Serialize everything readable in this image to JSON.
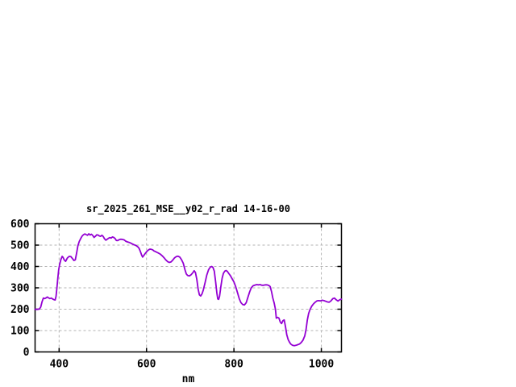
{
  "window": {
    "background": "#ffffff"
  },
  "chart_data": {
    "type": "line",
    "title": "sr_2025_261_MSE__y02_r_rad 14-16-00",
    "xlabel": "nm",
    "ylabel": "",
    "xlim": [
      345,
      1046
    ],
    "ylim": [
      0,
      600
    ],
    "xticks": [
      400,
      600,
      800,
      1000
    ],
    "yticks": [
      0,
      100,
      200,
      300,
      400,
      500,
      600
    ],
    "grid": true,
    "legend_position": "none",
    "colors": {
      "line": "#9400d3",
      "grid": "#b3b3b3",
      "axis": "#000000",
      "text": "#000000",
      "background": "#ffffff"
    },
    "series": [
      {
        "name": "sr_2025_261_MSE__y02_r_rad",
        "color": "#9400d3",
        "points": [
          [
            345,
            200
          ],
          [
            350,
            199
          ],
          [
            355,
            201
          ],
          [
            358,
            210
          ],
          [
            361,
            235
          ],
          [
            364,
            252
          ],
          [
            367,
            250
          ],
          [
            370,
            253
          ],
          [
            373,
            257
          ],
          [
            376,
            253
          ],
          [
            379,
            250
          ],
          [
            382,
            252
          ],
          [
            385,
            248
          ],
          [
            388,
            245
          ],
          [
            391,
            243
          ],
          [
            393,
            260
          ],
          [
            395,
            300
          ],
          [
            397,
            345
          ],
          [
            399,
            385
          ],
          [
            401,
            408
          ],
          [
            404,
            432
          ],
          [
            407,
            447
          ],
          [
            409,
            443
          ],
          [
            412,
            430
          ],
          [
            415,
            424
          ],
          [
            419,
            440
          ],
          [
            423,
            447
          ],
          [
            427,
            446
          ],
          [
            431,
            436
          ],
          [
            434,
            428
          ],
          [
            437,
            431
          ],
          [
            440,
            462
          ],
          [
            443,
            497
          ],
          [
            446,
            517
          ],
          [
            450,
            533
          ],
          [
            453,
            543
          ],
          [
            456,
            549
          ],
          [
            459,
            552
          ],
          [
            462,
            549
          ],
          [
            465,
            546
          ],
          [
            468,
            553
          ],
          [
            471,
            547
          ],
          [
            474,
            551
          ],
          [
            477,
            545
          ],
          [
            480,
            536
          ],
          [
            483,
            541
          ],
          [
            486,
            548
          ],
          [
            489,
            547
          ],
          [
            492,
            543
          ],
          [
            495,
            541
          ],
          [
            498,
            546
          ],
          [
            501,
            540
          ],
          [
            504,
            529
          ],
          [
            507,
            523
          ],
          [
            510,
            527
          ],
          [
            513,
            532
          ],
          [
            516,
            535
          ],
          [
            519,
            533
          ],
          [
            522,
            538
          ],
          [
            525,
            536
          ],
          [
            528,
            531
          ],
          [
            531,
            522
          ],
          [
            534,
            521
          ],
          [
            537,
            525
          ],
          [
            540,
            527
          ],
          [
            543,
            527
          ],
          [
            546,
            526
          ],
          [
            549,
            524
          ],
          [
            552,
            519
          ],
          [
            556,
            515
          ],
          [
            560,
            513
          ],
          [
            564,
            509
          ],
          [
            568,
            505
          ],
          [
            572,
            501
          ],
          [
            576,
            498
          ],
          [
            580,
            492
          ],
          [
            583,
            485
          ],
          [
            586,
            470
          ],
          [
            589,
            452
          ],
          [
            591,
            444
          ],
          [
            593,
            449
          ],
          [
            596,
            458
          ],
          [
            599,
            466
          ],
          [
            602,
            473
          ],
          [
            605,
            478
          ],
          [
            608,
            481
          ],
          [
            611,
            480
          ],
          [
            614,
            478
          ],
          [
            617,
            473
          ],
          [
            620,
            470
          ],
          [
            624,
            466
          ],
          [
            628,
            462
          ],
          [
            632,
            457
          ],
          [
            636,
            450
          ],
          [
            640,
            441
          ],
          [
            644,
            431
          ],
          [
            648,
            423
          ],
          [
            652,
            419
          ],
          [
            656,
            421
          ],
          [
            660,
            430
          ],
          [
            664,
            440
          ],
          [
            668,
            446
          ],
          [
            672,
            448
          ],
          [
            676,
            444
          ],
          [
            680,
            432
          ],
          [
            684,
            415
          ],
          [
            688,
            385
          ],
          [
            691,
            365
          ],
          [
            694,
            358
          ],
          [
            698,
            356
          ],
          [
            702,
            361
          ],
          [
            706,
            371
          ],
          [
            709,
            380
          ],
          [
            712,
            372
          ],
          [
            715,
            340
          ],
          [
            718,
            295
          ],
          [
            721,
            267
          ],
          [
            724,
            262
          ],
          [
            727,
            272
          ],
          [
            730,
            290
          ],
          [
            734,
            325
          ],
          [
            738,
            360
          ],
          [
            742,
            385
          ],
          [
            746,
            397
          ],
          [
            749,
            400
          ],
          [
            752,
            396
          ],
          [
            755,
            378
          ],
          [
            758,
            330
          ],
          [
            761,
            275
          ],
          [
            763,
            248
          ],
          [
            765,
            246
          ],
          [
            767,
            260
          ],
          [
            770,
            305
          ],
          [
            773,
            345
          ],
          [
            776,
            368
          ],
          [
            779,
            378
          ],
          [
            782,
            381
          ],
          [
            785,
            377
          ],
          [
            788,
            368
          ],
          [
            792,
            357
          ],
          [
            796,
            342
          ],
          [
            800,
            328
          ],
          [
            804,
            306
          ],
          [
            808,
            278
          ],
          [
            812,
            250
          ],
          [
            816,
            231
          ],
          [
            820,
            222
          ],
          [
            824,
            220
          ],
          [
            828,
            230
          ],
          [
            832,
            256
          ],
          [
            836,
            282
          ],
          [
            840,
            301
          ],
          [
            844,
            310
          ],
          [
            848,
            313
          ],
          [
            852,
            315
          ],
          [
            856,
            314
          ],
          [
            860,
            315
          ],
          [
            864,
            312
          ],
          [
            868,
            312
          ],
          [
            872,
            314
          ],
          [
            876,
            314
          ],
          [
            880,
            311
          ],
          [
            883,
            306
          ],
          [
            886,
            282
          ],
          [
            889,
            252
          ],
          [
            892,
            230
          ],
          [
            895,
            200
          ],
          [
            897,
            158
          ],
          [
            900,
            162
          ],
          [
            903,
            158
          ],
          [
            906,
            140
          ],
          [
            909,
            133
          ],
          [
            912,
            146
          ],
          [
            915,
            150
          ],
          [
            918,
            118
          ],
          [
            921,
            80
          ],
          [
            924,
            58
          ],
          [
            927,
            46
          ],
          [
            930,
            37
          ],
          [
            934,
            31
          ],
          [
            938,
            29
          ],
          [
            942,
            31
          ],
          [
            946,
            34
          ],
          [
            950,
            37
          ],
          [
            954,
            44
          ],
          [
            958,
            55
          ],
          [
            962,
            75
          ],
          [
            965,
            105
          ],
          [
            968,
            150
          ],
          [
            971,
            180
          ],
          [
            974,
            198
          ],
          [
            978,
            214
          ],
          [
            982,
            225
          ],
          [
            986,
            233
          ],
          [
            990,
            239
          ],
          [
            994,
            240
          ],
          [
            998,
            239
          ],
          [
            1002,
            242
          ],
          [
            1006,
            240
          ],
          [
            1010,
            237
          ],
          [
            1014,
            234
          ],
          [
            1018,
            233
          ],
          [
            1022,
            239
          ],
          [
            1026,
            249
          ],
          [
            1030,
            252
          ],
          [
            1034,
            244
          ],
          [
            1038,
            238
          ],
          [
            1042,
            244
          ],
          [
            1046,
            247
          ]
        ]
      }
    ]
  }
}
